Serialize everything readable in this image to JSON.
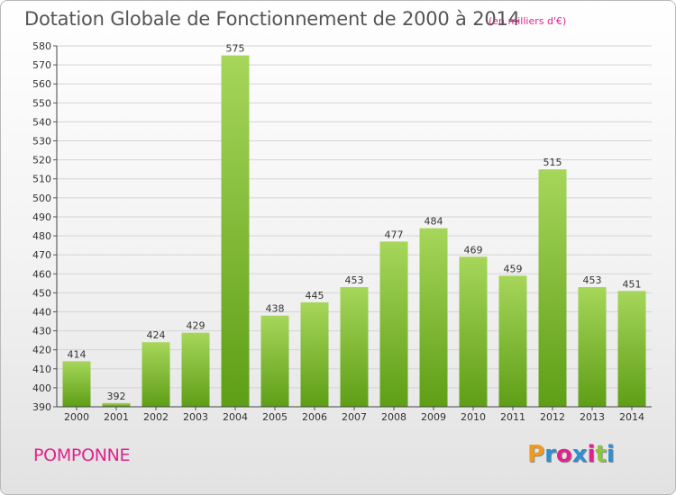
{
  "title": "Dotation Globale de Fonctionnement de 2000 à 2014",
  "subtitle": "(en milliers d'€)",
  "town": "POMPONNE",
  "logo": {
    "letters": [
      "P",
      "r",
      "o",
      "x",
      "i",
      "t",
      "i"
    ],
    "colors": [
      "#f29a1f",
      "#2f8fd0",
      "#e0238c",
      "#2f8fd0",
      "#e0238c",
      "#8cc63f",
      "#2f8fd0"
    ]
  },
  "colors": {
    "bar_top": "#a6d65a",
    "bar_bottom": "#5e9e16",
    "accent": "#e0238c"
  },
  "chart_data": {
    "type": "bar",
    "categories": [
      "2000",
      "2001",
      "2002",
      "2003",
      "2004",
      "2005",
      "2006",
      "2007",
      "2008",
      "2009",
      "2010",
      "2011",
      "2012",
      "2013",
      "2014"
    ],
    "values": [
      414,
      392,
      424,
      429,
      575,
      438,
      445,
      453,
      477,
      484,
      469,
      459,
      515,
      453,
      451
    ],
    "ylim": [
      390,
      580
    ],
    "ytick_step": 10,
    "grid": true
  }
}
